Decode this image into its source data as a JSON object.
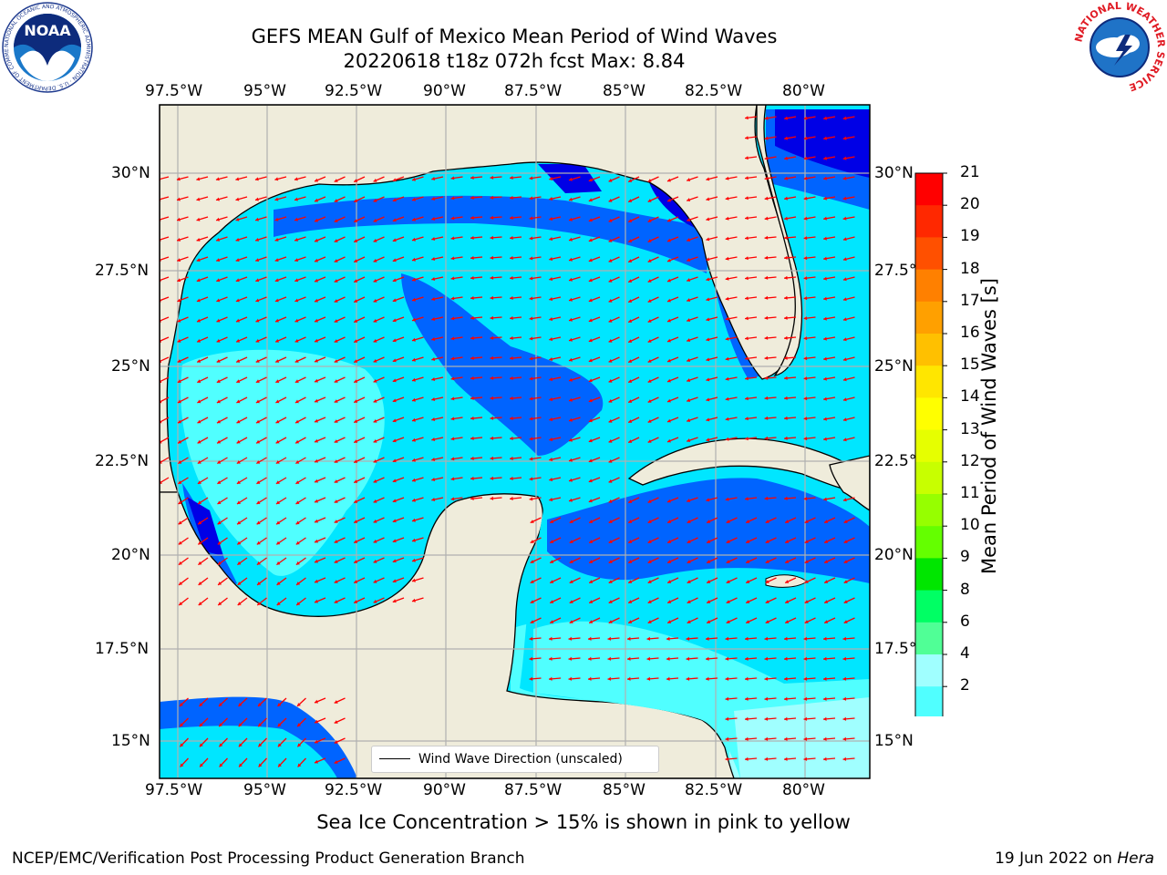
{
  "title": {
    "line1": "GEFS MEAN Gulf of Mexico Mean Period of Wind Waves",
    "line2": "20220618 t18z 072h fcst   Max: 8.84"
  },
  "map": {
    "lon_ticks": [
      "97.5°W",
      "95°W",
      "92.5°W",
      "90°W",
      "87.5°W",
      "85°W",
      "82.5°W",
      "80°W"
    ],
    "lat_ticks": [
      "30°N",
      "27.5°N",
      "25°N",
      "22.5°N",
      "20°N",
      "17.5°N",
      "15°N"
    ],
    "legend": "Wind Wave Direction (unscaled)",
    "colors": {
      "land": "#efecdb",
      "coast": "#000000",
      "grid": "#b0b0b0",
      "arrows": "#ff0000",
      "band_2_4": "#0064ff",
      "band_4_6": "#00e6ff",
      "band_6_8": "#50ffff",
      "band_8_9": "#a0ffff",
      "under": "#0000e6"
    }
  },
  "colorbar": {
    "label": "Mean Period of Wind Waves [s]",
    "ticks": [
      "21",
      "20",
      "19",
      "18",
      "17",
      "16",
      "15",
      "14",
      "13",
      "12",
      "11",
      "10",
      "9",
      "8",
      "6",
      "4",
      "2"
    ],
    "colors": [
      "#ff0000",
      "#ff2800",
      "#ff5000",
      "#ff8000",
      "#ffa000",
      "#ffc000",
      "#ffe600",
      "#ffff00",
      "#e6ff00",
      "#c8ff00",
      "#96ff00",
      "#64ff00",
      "#00e600",
      "#00ff64",
      "#50ff96",
      "#a0ffff",
      "#50ffff",
      "#00e6ff",
      "#0064ff"
    ],
    "under_color": "#0000e6"
  },
  "footer": {
    "note": "Sea Ice Concentration > 15% is shown in pink to yellow",
    "credit": "NCEP/EMC/Verification Post Processing Product Generation Branch",
    "date": "19 Jun 2022 on",
    "machine": "Hera"
  },
  "logos": {
    "noaa": "NOAA",
    "noaa_ring": "NATIONAL OCEANIC AND ATMOSPHERIC ADMINISTRATION · U.S. DEPARTMENT OF COMMERCE",
    "nws_ring": "NATIONAL WEATHER SERVICE"
  }
}
